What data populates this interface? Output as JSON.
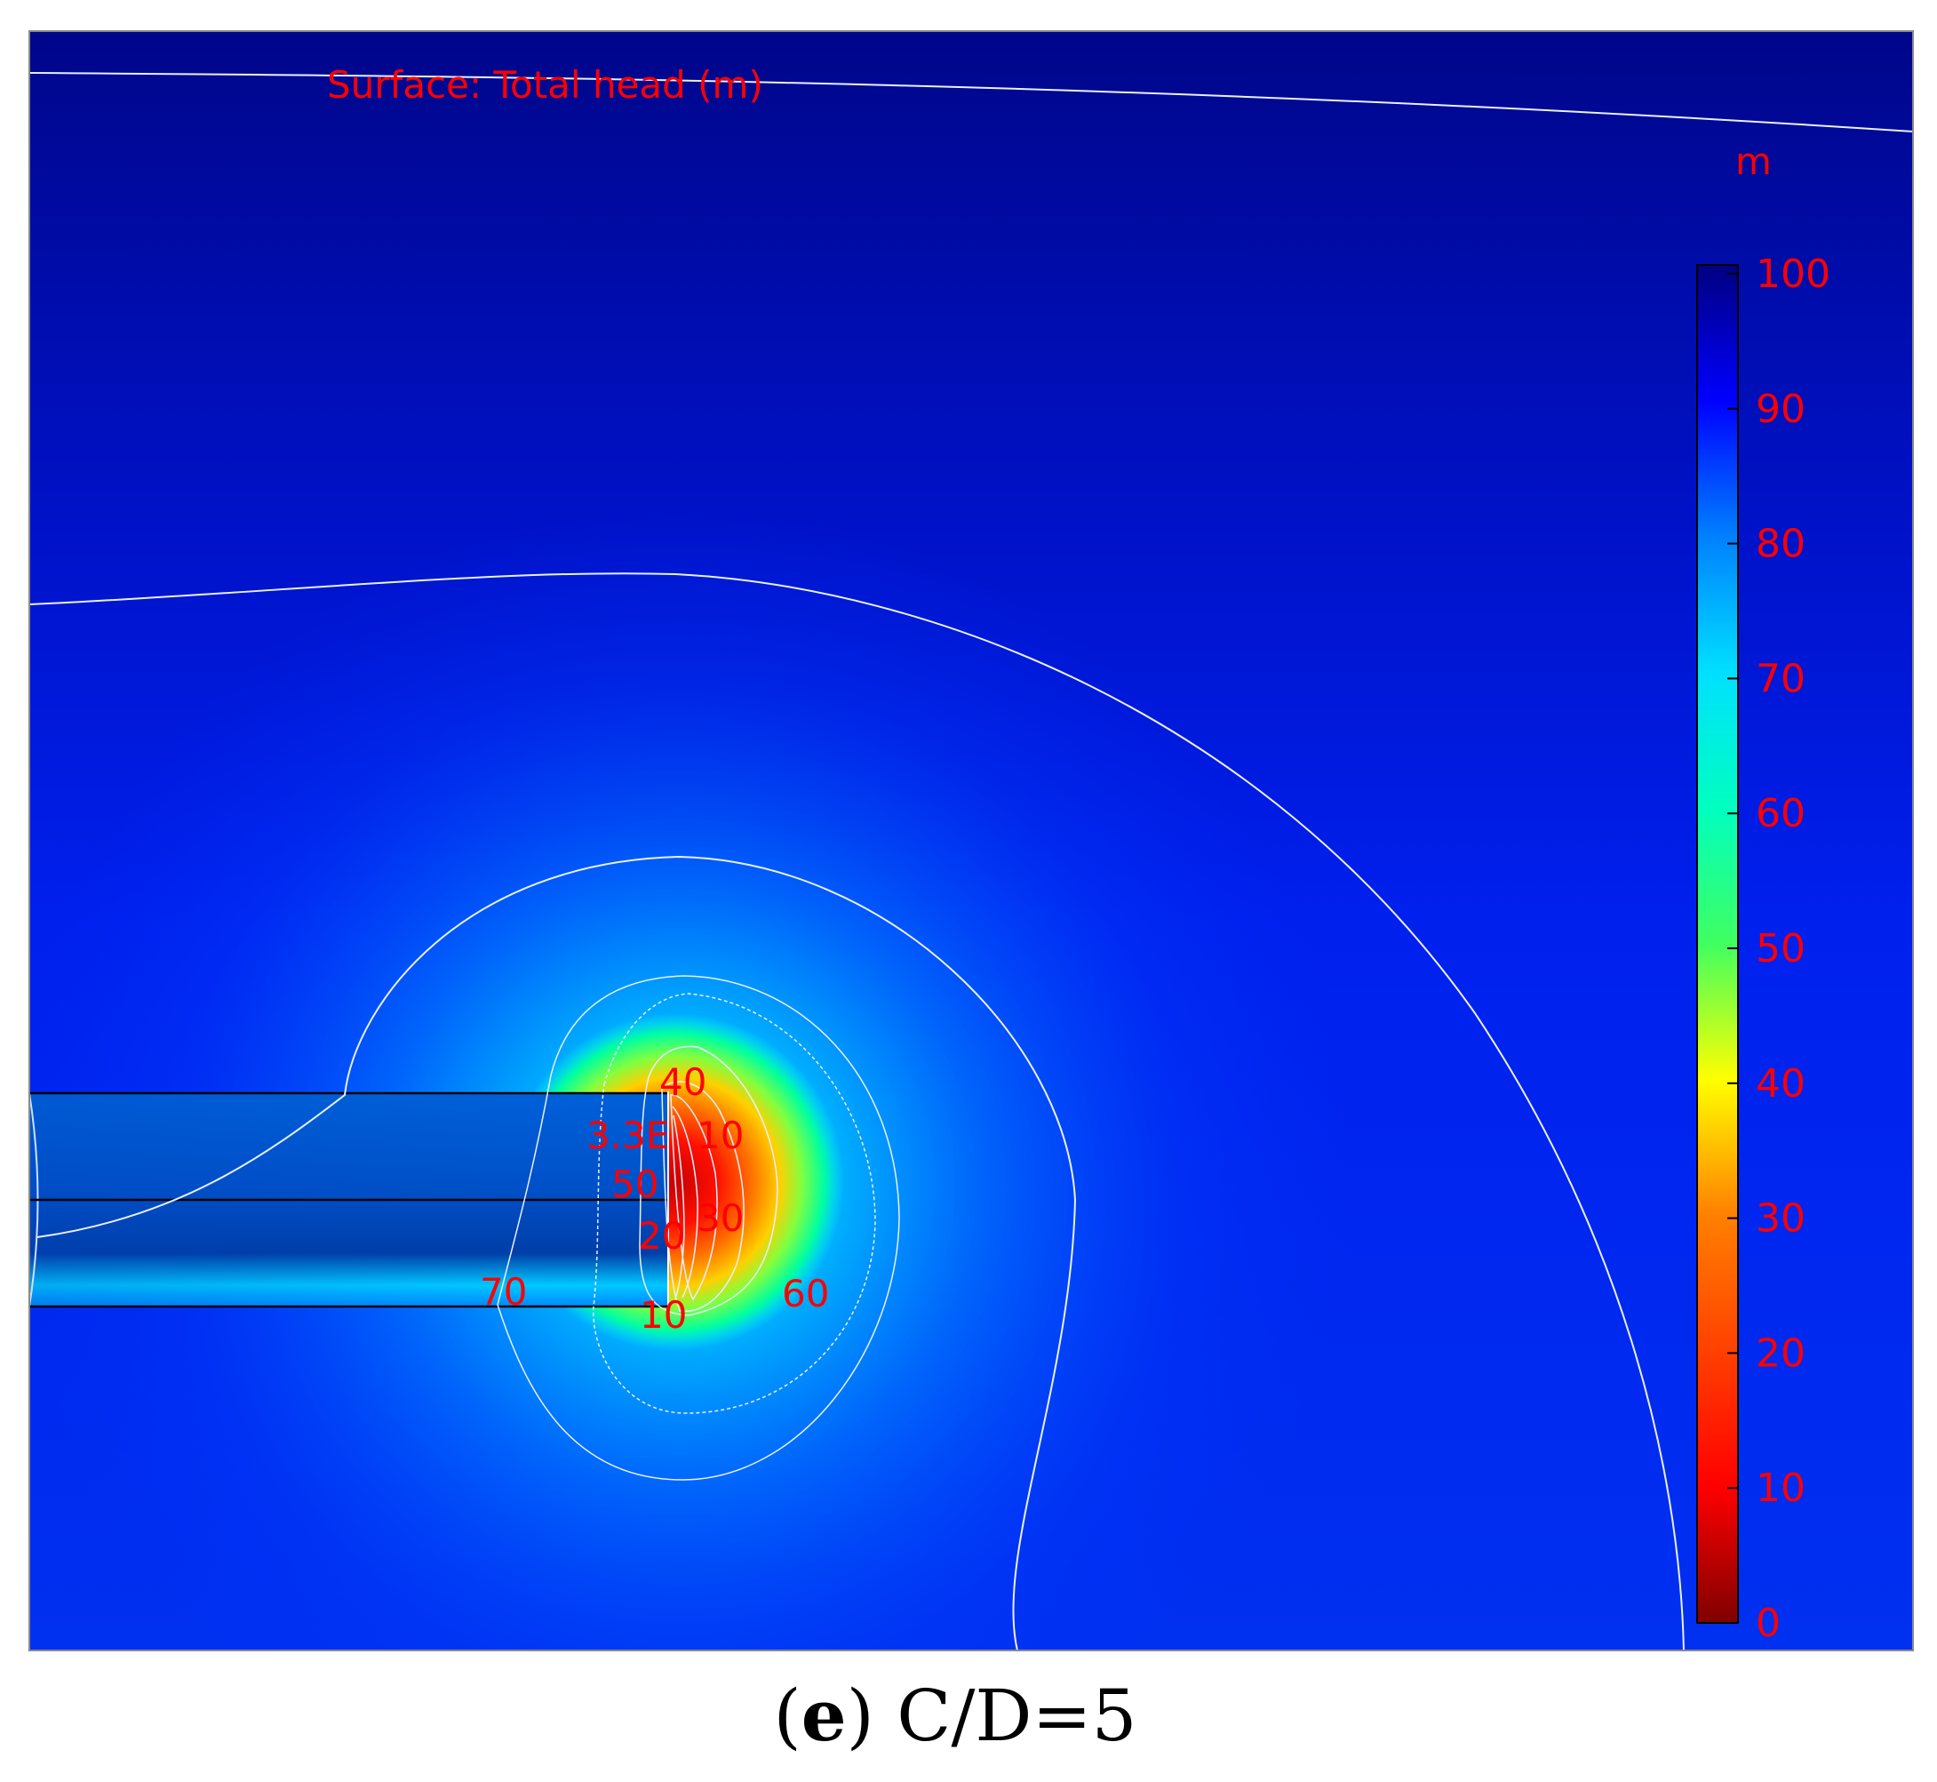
{
  "chart_data": {
    "type": "heatmap",
    "title": "Surface: Total head (m)",
    "unit_label": "m",
    "colorbar": {
      "min": 0,
      "max": 100,
      "ticks": [
        "100",
        "90",
        "80",
        "70",
        "60",
        "50",
        "40",
        "30",
        "20",
        "10",
        "0"
      ],
      "colormap": "rainbow",
      "colors": [
        "#000080",
        "#0000ff",
        "#0078ff",
        "#00ffff",
        "#00ff80",
        "#ffff00",
        "#ff8000",
        "#ff0000",
        "#800000"
      ]
    },
    "contour_labels": [
      {
        "text": "40"
      },
      {
        "text": "3.3E"
      },
      {
        "text": "10"
      },
      {
        "text": "50"
      },
      {
        "text": "30"
      },
      {
        "text": "20"
      },
      {
        "text": "70"
      },
      {
        "text": "60"
      },
      {
        "text": "10"
      }
    ]
  },
  "caption": {
    "letter": "e",
    "open": "(",
    "close": ")",
    "text": " C/D=5"
  },
  "colors": {
    "label": "#ff0000",
    "contour": "#e8f0ff",
    "tunnel_outline": "#000000"
  }
}
